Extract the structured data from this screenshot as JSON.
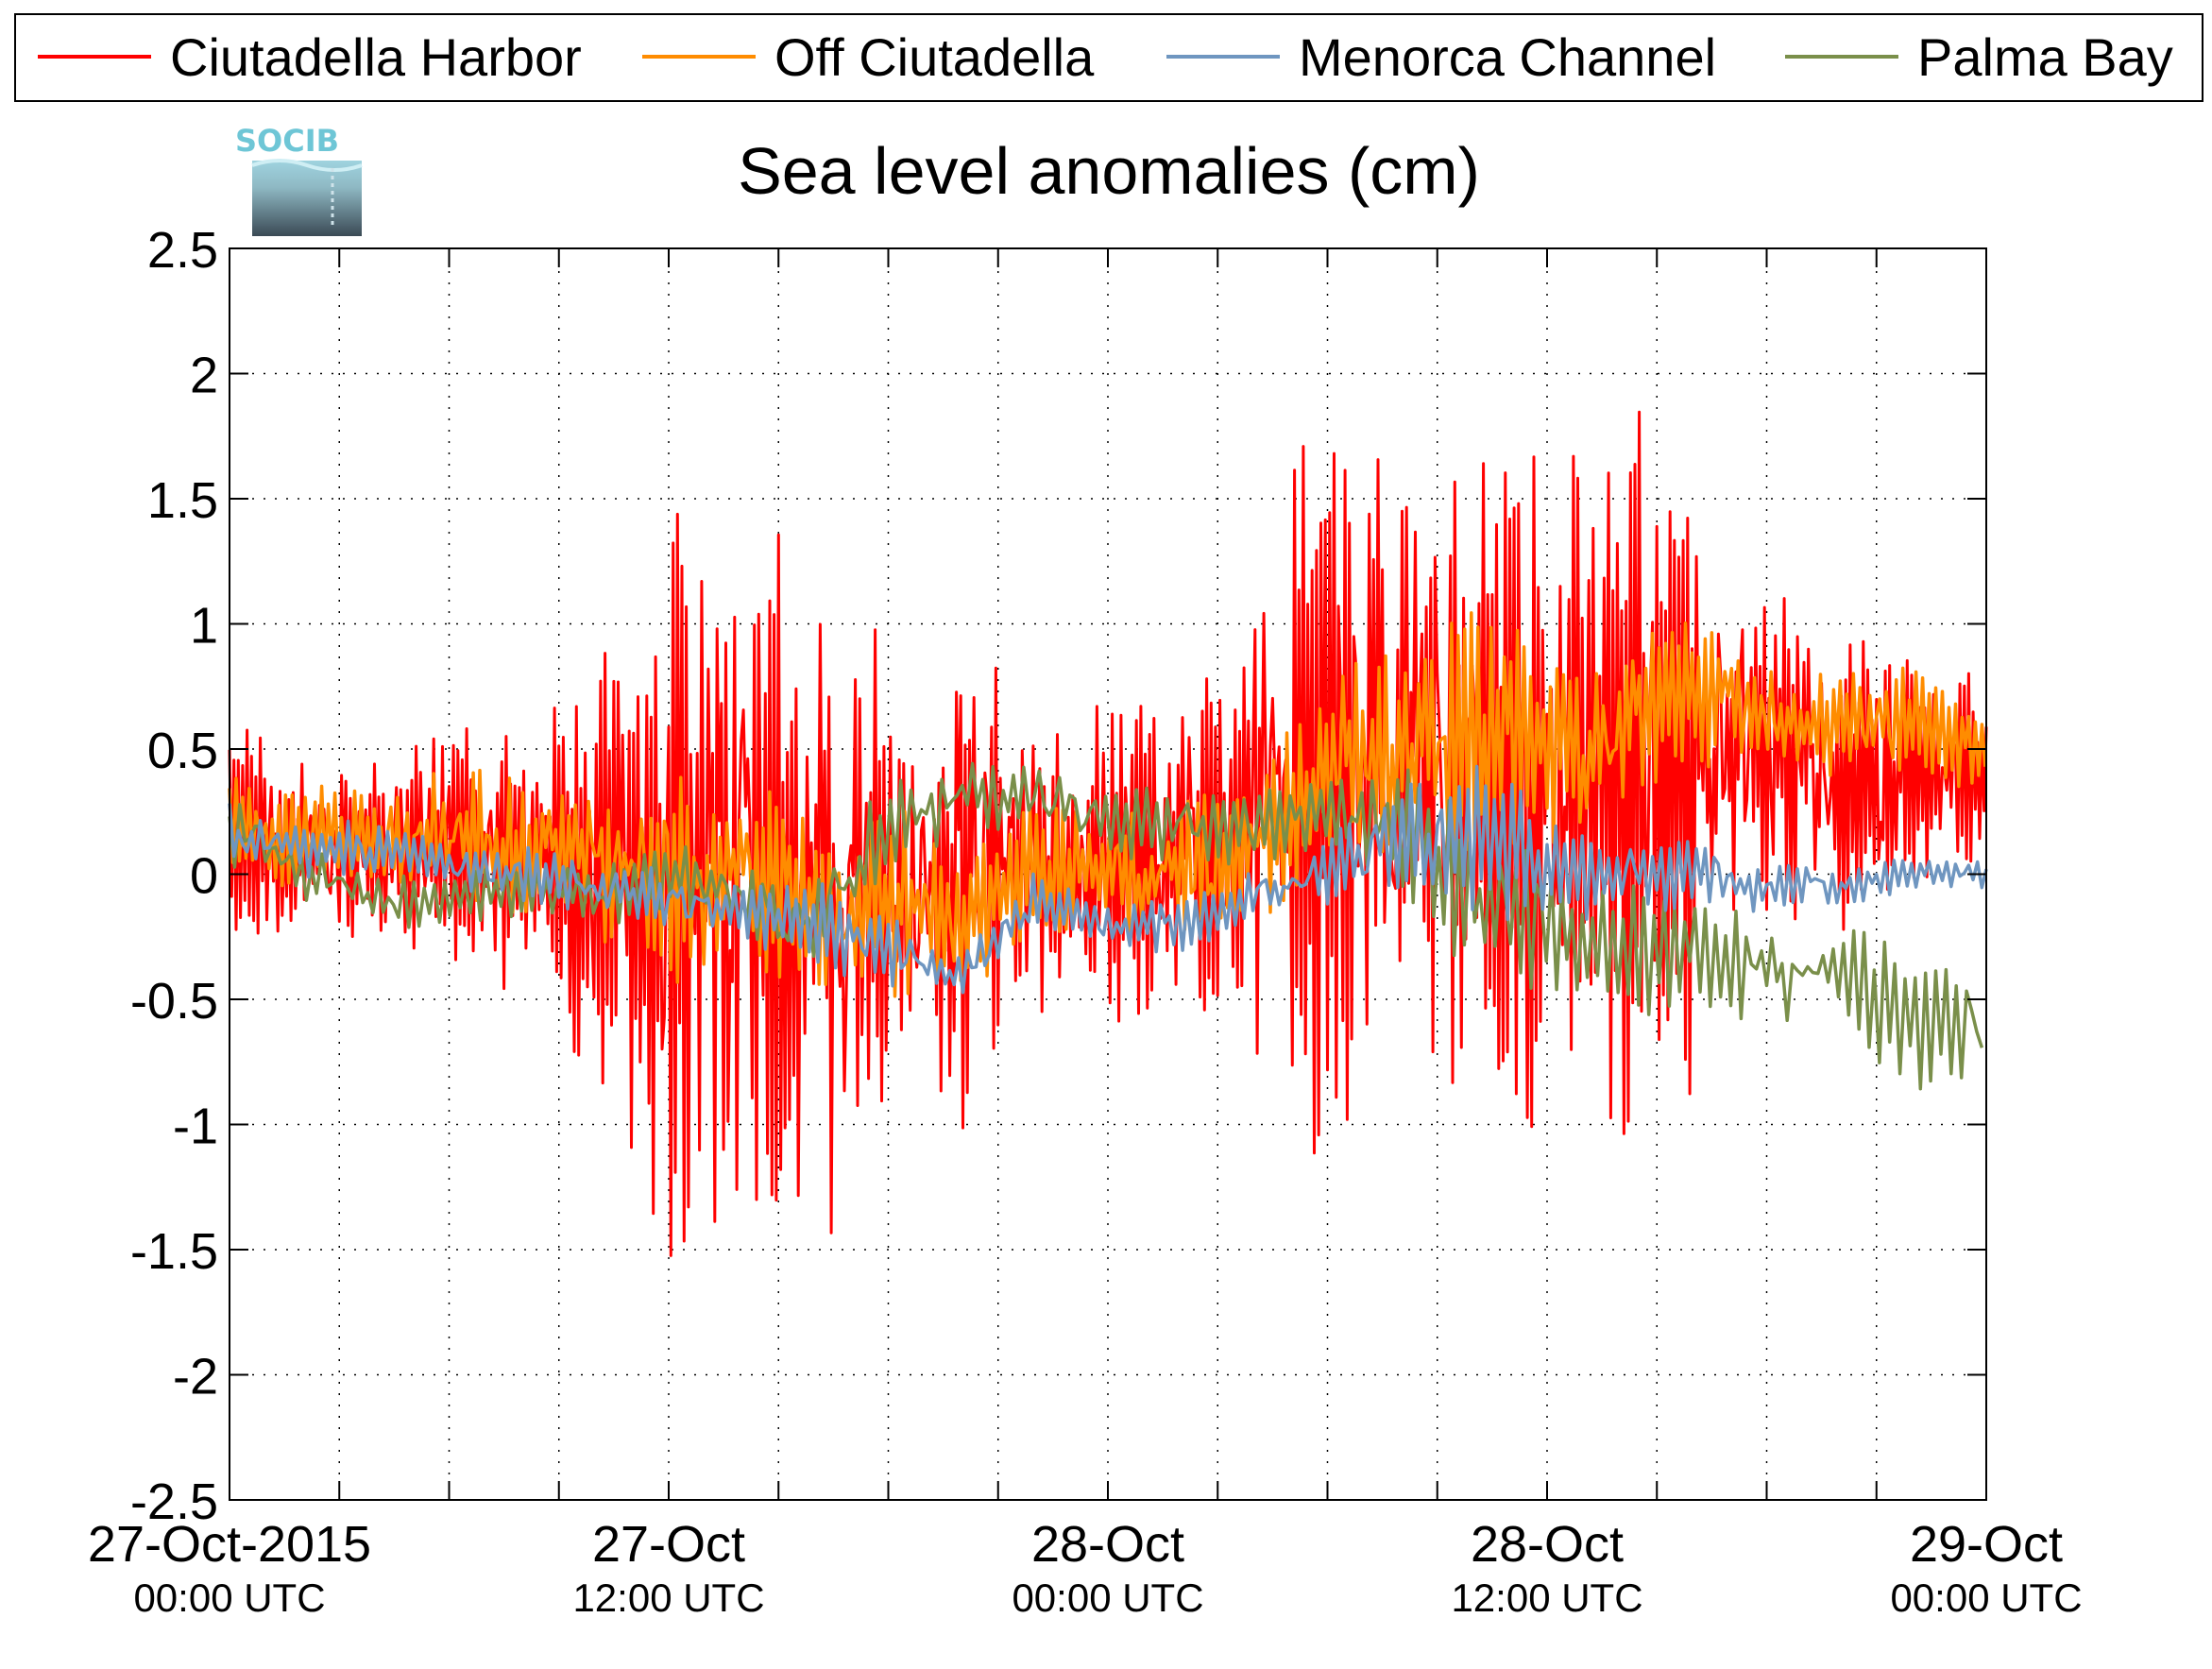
{
  "logo": {
    "text": "SOCIB"
  },
  "chart_data": {
    "type": "line",
    "title": "Sea level anomalies (cm)",
    "xlabel": "",
    "ylabel": "",
    "ylim": [
      -2.5,
      2.5
    ],
    "yticks": [
      "2.5",
      "2",
      "1.5",
      "1",
      "0.5",
      "0",
      "-0.5",
      "-1",
      "-1.5",
      "-2",
      "-2.5"
    ],
    "xlim_hours": [
      0,
      48
    ],
    "xticks": [
      {
        "hour": 0,
        "line1": "27-Oct-2015",
        "line2": "00:00 UTC"
      },
      {
        "hour": 12,
        "line1": "27-Oct",
        "line2": "12:00 UTC"
      },
      {
        "hour": 24,
        "line1": "28-Oct",
        "line2": "00:00 UTC"
      },
      {
        "hour": 36,
        "line1": "28-Oct",
        "line2": "12:00 UTC"
      },
      {
        "hour": 48,
        "line1": "29-Oct",
        "line2": "00:00 UTC"
      }
    ],
    "grid": true,
    "legend_position": "top",
    "series": [
      {
        "name": "Ciutadella Harbor",
        "color": "#ff0000",
        "hours": [
          0,
          2,
          4,
          6,
          8,
          10,
          12,
          14,
          16,
          18,
          20,
          22,
          24,
          26,
          28,
          30,
          32,
          34,
          36,
          38,
          40,
          42,
          44,
          46,
          48
        ],
        "mean": [
          0.15,
          0.1,
          0.1,
          0.1,
          0.05,
          0.0,
          -0.1,
          0.0,
          -0.2,
          -0.1,
          0.0,
          0.0,
          0.0,
          0.05,
          0.2,
          0.4,
          0.5,
          0.4,
          0.3,
          0.4,
          0.5,
          0.5,
          0.4,
          0.4,
          0.45
        ],
        "amplitude": [
          0.4,
          0.35,
          0.35,
          0.5,
          0.5,
          0.7,
          1.6,
          1.4,
          1.3,
          0.9,
          0.9,
          0.6,
          0.6,
          0.6,
          0.9,
          1.5,
          1.2,
          1.2,
          1.2,
          1.3,
          1.3,
          0.8,
          0.55,
          0.45,
          0.35
        ]
      },
      {
        "name": "Off Ciutadella",
        "color": "#ff8c00",
        "hours": [
          0,
          2,
          4,
          6,
          8,
          10,
          12,
          14,
          16,
          18,
          20,
          22,
          24,
          26,
          28,
          30,
          32,
          34,
          36,
          38,
          40,
          42,
          44,
          46,
          48
        ],
        "mean": [
          0.2,
          0.15,
          0.15,
          0.15,
          0.1,
          0.1,
          0.0,
          0.0,
          -0.1,
          -0.1,
          -0.2,
          0.0,
          0.0,
          0.0,
          0.1,
          0.45,
          0.5,
          0.6,
          0.5,
          0.6,
          0.75,
          0.6,
          0.6,
          0.6,
          0.5
        ],
        "amplitude": [
          0.2,
          0.2,
          0.2,
          0.25,
          0.25,
          0.3,
          0.4,
          0.35,
          0.3,
          0.35,
          0.3,
          0.25,
          0.25,
          0.25,
          0.3,
          0.35,
          0.4,
          0.5,
          0.4,
          0.35,
          0.3,
          0.25,
          0.2,
          0.2,
          0.15
        ]
      },
      {
        "name": "Menorca Channel",
        "color": "#6f96c0",
        "hours": [
          0,
          2,
          4,
          6,
          8,
          10,
          12,
          14,
          16,
          18,
          20,
          22,
          24,
          26,
          28,
          30,
          32,
          34,
          36,
          38,
          40,
          42,
          44,
          46,
          48
        ],
        "mean": [
          0.15,
          0.1,
          0.1,
          0.05,
          0.0,
          -0.05,
          -0.1,
          -0.15,
          -0.2,
          -0.3,
          -0.4,
          -0.1,
          -0.2,
          -0.2,
          -0.1,
          0.05,
          0.1,
          0.2,
          0.0,
          0.0,
          0.0,
          -0.05,
          -0.05,
          0.0,
          0.0
        ],
        "amplitude": [
          0.12,
          0.1,
          0.1,
          0.1,
          0.1,
          0.1,
          0.12,
          0.12,
          0.15,
          0.15,
          0.12,
          0.1,
          0.1,
          0.1,
          0.1,
          0.15,
          0.25,
          0.35,
          0.2,
          0.15,
          0.12,
          0.1,
          0.08,
          0.06,
          0.05
        ]
      },
      {
        "name": "Palma Bay",
        "color": "#7a8f4a",
        "hours": [
          0,
          2,
          4,
          6,
          8,
          10,
          12,
          14,
          16,
          18,
          20,
          22,
          24,
          26,
          28,
          30,
          32,
          34,
          36,
          38,
          40,
          42,
          44,
          46,
          48
        ],
        "mean": [
          0.2,
          0.0,
          -0.1,
          -0.1,
          -0.05,
          -0.1,
          0.0,
          -0.1,
          -0.2,
          0.2,
          0.3,
          0.3,
          0.2,
          0.2,
          0.2,
          0.25,
          0.2,
          -0.1,
          -0.2,
          -0.3,
          -0.3,
          -0.4,
          -0.4,
          -0.6,
          -0.6
        ],
        "amplitude": [
          0.15,
          0.12,
          0.1,
          0.1,
          0.1,
          0.12,
          0.12,
          0.15,
          0.2,
          0.2,
          0.15,
          0.15,
          0.15,
          0.15,
          0.15,
          0.15,
          0.25,
          0.3,
          0.25,
          0.25,
          0.2,
          0.2,
          0.2,
          0.25,
          0.2
        ]
      }
    ]
  }
}
